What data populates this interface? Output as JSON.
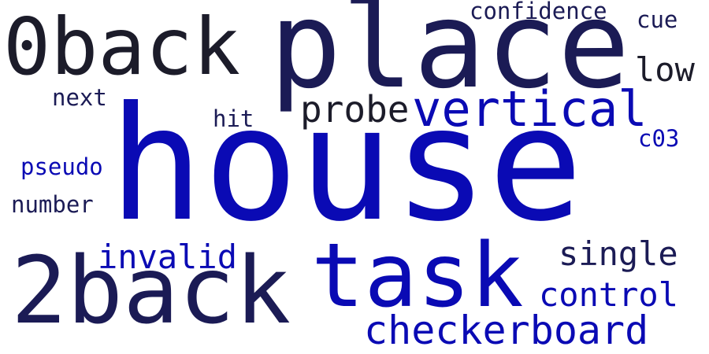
{
  "words": {
    "house": {
      "text": "house",
      "color": "#0a0ab4"
    },
    "place": {
      "text": "place",
      "color": "#1b1b55"
    },
    "task": {
      "text": "task",
      "color": "#0a0ab4"
    },
    "back2": {
      "text": "2back",
      "color": "#1b1b55"
    },
    "back0": {
      "text": "0back",
      "color": "#1c1c2a"
    },
    "vertical": {
      "text": "vertical",
      "color": "#0a0ab4"
    },
    "checkerboard": {
      "text": "checkerboard",
      "color": "#0a0ab4"
    },
    "probe": {
      "text": "probe",
      "color": "#1c1c2a"
    },
    "invalid": {
      "text": "invalid",
      "color": "#0a0ab4"
    },
    "single": {
      "text": "single",
      "color": "#1b1b55"
    },
    "control": {
      "text": "control",
      "color": "#0a0ab4"
    },
    "low": {
      "text": "low",
      "color": "#1c1c2a"
    },
    "confidence": {
      "text": "confidence",
      "color": "#1b1b55"
    },
    "cue": {
      "text": "cue",
      "color": "#1b1b55"
    },
    "next": {
      "text": "next",
      "color": "#1b1b55"
    },
    "hit": {
      "text": "hit",
      "color": "#1b1b55"
    },
    "c03": {
      "text": "c03",
      "color": "#0a0ab4"
    },
    "pseudo": {
      "text": "pseudo",
      "color": "#0a0ab4"
    },
    "number": {
      "text": "number",
      "color": "#1b1b55"
    }
  }
}
